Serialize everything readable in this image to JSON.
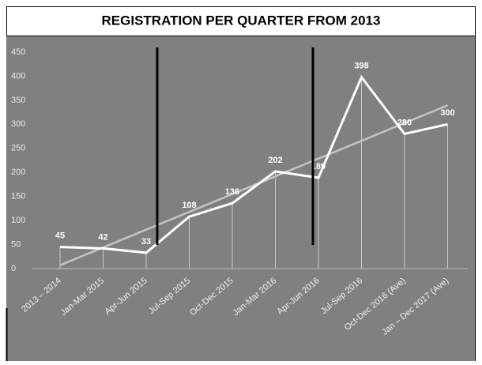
{
  "chart_data": {
    "type": "line",
    "title": "REGISTRATION PER QUARTER FROM 2013",
    "categories": [
      "2013 – 2014",
      "Jan-Mar 2015",
      "Apr-Jun 2015",
      "Jul-Sep 2015",
      "Oct-Dec 2015",
      "Jan-Mar 2016",
      "Apr-Jun 2016",
      "Jul-Sep 2016",
      "Oct-Dec 2016 (Ave)",
      "Jan – Dec 2017 (Ave)"
    ],
    "values": [
      45,
      42,
      33,
      108,
      136,
      202,
      189,
      398,
      280,
      300
    ],
    "color": "#ffffff",
    "ylim": [
      0,
      450
    ],
    "yticks": [
      0,
      50,
      100,
      150,
      200,
      250,
      300,
      350,
      400,
      450
    ],
    "trendline": true
  }
}
